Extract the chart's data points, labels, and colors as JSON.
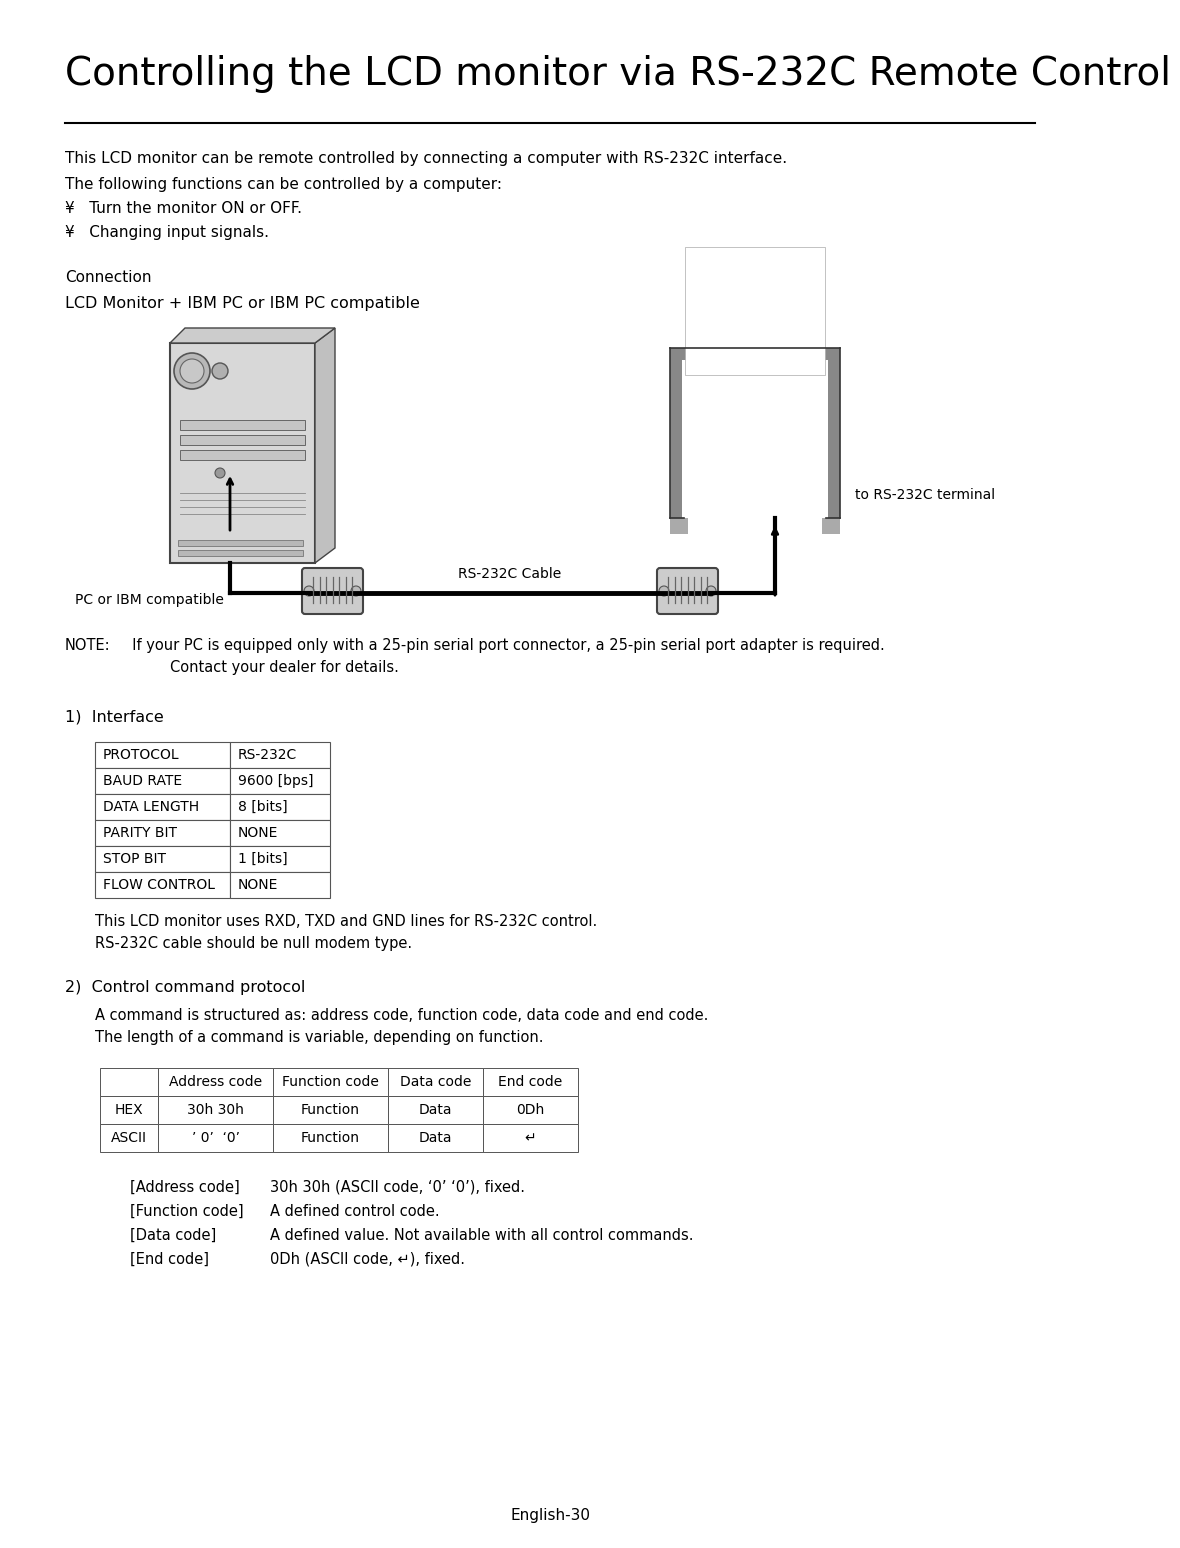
{
  "title": "Controlling the LCD monitor via RS-232C Remote Control",
  "bg_color": "#ffffff",
  "text_color": "#000000",
  "page_number": "English-30",
  "intro_line1": "This LCD monitor can be remote controlled by connecting a computer with RS-232C interface.",
  "intro_line2": "The following functions can be controlled by a computer:",
  "bullet1": "¥   Turn the monitor ON or OFF.",
  "bullet2": "¥   Changing input signals.",
  "connection_label": "Connection",
  "connection_sub": "LCD Monitor + IBM PC or IBM PC compatible",
  "pc_label": "PC or IBM compatible",
  "monitor_label": "to RS-232C terminal",
  "cable_label": "RS-232C Cable",
  "note_prefix": "NOTE:",
  "note_line1": "  If your PC is equipped only with a 25-pin serial port connector, a 25-pin serial port adapter is required.",
  "note_line2": "Contact your dealer for details.",
  "section1": "1)  Interface",
  "interface_table": [
    [
      "PROTOCOL",
      "RS-232C"
    ],
    [
      "BAUD RATE",
      "9600 [bps]"
    ],
    [
      "DATA LENGTH",
      "8 [bits]"
    ],
    [
      "PARITY BIT",
      "NONE"
    ],
    [
      "STOP BIT",
      "1 [bits]"
    ],
    [
      "FLOW CONTROL",
      "NONE"
    ]
  ],
  "rxd_line": "This LCD monitor uses RXD, TXD and GND lines for RS-232C control.",
  "null_modem": "RS-232C cable should be null modem type.",
  "section2": "2)  Control command protocol",
  "cmd_desc1": "A command is structured as: address code, function code, data code and end code.",
  "cmd_desc2": "The length of a command is variable, depending on function.",
  "cmd_table_headers": [
    "",
    "Address code",
    "Function code",
    "Data code",
    "End code"
  ],
  "cmd_table_rows": [
    [
      "HEX",
      "30h 30h",
      "Function",
      "Data",
      "0Dh"
    ],
    [
      "ASCII",
      "’ 0’  ‘0’",
      "Function",
      "Data",
      "↵"
    ]
  ],
  "desc_items": [
    [
      "[Address code]",
      "30h 30h (ASCII code, ‘0’ ‘0’), fixed."
    ],
    [
      "[Function code]",
      "A defined control code."
    ],
    [
      "[Data code]",
      "A defined value. Not available with all control commands."
    ],
    [
      "[End code]",
      "0Dh (ASCII code, ↵), fixed."
    ]
  ]
}
